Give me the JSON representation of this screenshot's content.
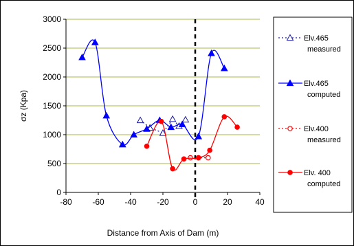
{
  "chart_data": {
    "type": "line",
    "xlabel": "Distance from Axis of Dam (m)",
    "ylabel": "σz (Kpa)",
    "xlim": [
      -80,
      40
    ],
    "ylim": [
      0,
      3000
    ],
    "xticks": [
      -80,
      -60,
      -40,
      -20,
      0,
      20,
      40
    ],
    "yticks": [
      0,
      500,
      1000,
      1500,
      2000,
      2500,
      3000
    ],
    "grid": "horizontal",
    "legend_position": "right",
    "series": [
      {
        "name": "Elv.465 measured",
        "legend_lines": [
          "Elv.465",
          "measured"
        ],
        "color": "#1a1aa6",
        "line": "dotted",
        "marker": "open-triangle",
        "x": [
          -34,
          -28,
          -20,
          -14,
          -10,
          -6
        ],
        "y": [
          1250,
          1120,
          1030,
          1270,
          1150,
          1260
        ]
      },
      {
        "name": "Elv.465 computed",
        "legend_lines": [
          "Elv.465",
          "computed"
        ],
        "color": "#0000ff",
        "line": "solid",
        "marker": "filled-triangle",
        "x": [
          -70,
          -62,
          -55,
          -45,
          -38,
          -30,
          -22,
          -15,
          -8,
          2,
          10,
          18
        ],
        "y": [
          2340,
          2600,
          1330,
          830,
          1000,
          1100,
          1250,
          1130,
          1180,
          970,
          2410,
          2150
        ]
      },
      {
        "name": "Elv.400 measured",
        "legend_lines": [
          "Elv.400",
          "measured"
        ],
        "color": "#ff0000",
        "line": "dotted",
        "marker": "open-circle",
        "x": [
          -3,
          2,
          8
        ],
        "y": [
          600,
          600,
          600
        ]
      },
      {
        "name": "Elv.400 computed",
        "legend_lines": [
          "Elv. 400",
          "computed"
        ],
        "color": "#ff0000",
        "line": "solid",
        "marker": "filled-circle",
        "x": [
          -30,
          -21,
          -14,
          -7,
          2,
          9,
          18,
          26
        ],
        "y": [
          800,
          1230,
          410,
          580,
          600,
          730,
          1310,
          1130
        ]
      }
    ],
    "reference_line": {
      "x": 0,
      "style": "dashed",
      "color": "#000000"
    }
  }
}
